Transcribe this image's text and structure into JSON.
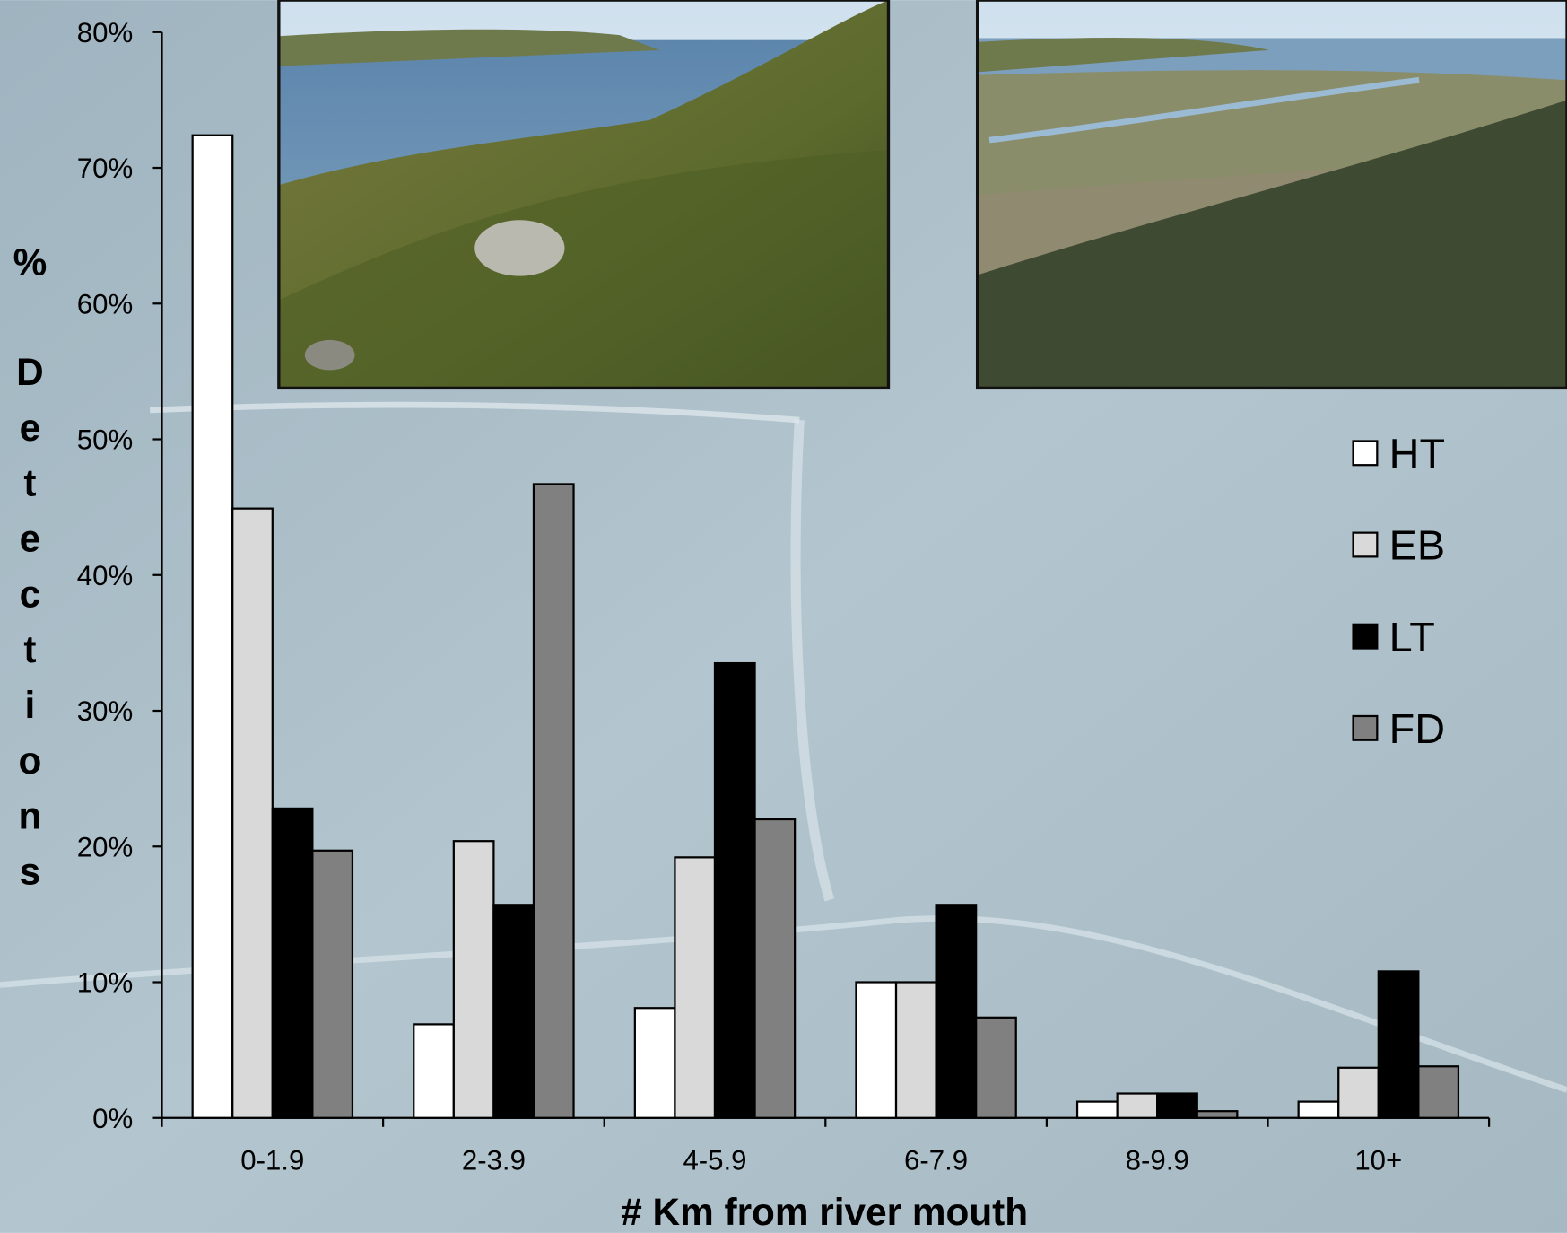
{
  "chart_data": {
    "type": "bar",
    "x_label": "# Km from river mouth",
    "y_label": "% Detections",
    "categories": [
      "0-1.9",
      "2-3.9",
      "4-5.9",
      "6-7.9",
      "8-9.9",
      "10+"
    ],
    "series": [
      {
        "name": "HT",
        "color": "#ffffff",
        "values": [
          72.4,
          6.9,
          8.1,
          10.0,
          1.2,
          1.2
        ]
      },
      {
        "name": "EB",
        "color": "#d9d9d9",
        "values": [
          44.9,
          20.4,
          19.2,
          10.0,
          1.8,
          3.7
        ]
      },
      {
        "name": "LT",
        "color": "#000000",
        "values": [
          22.8,
          15.7,
          33.5,
          15.7,
          1.8,
          10.8
        ]
      },
      {
        "name": "FD",
        "color": "#808080",
        "values": [
          19.7,
          46.7,
          22.0,
          7.4,
          0.5,
          3.8
        ]
      }
    ],
    "ylim": [
      0,
      80
    ],
    "yticks": [
      {
        "value": 0,
        "label": "0%"
      },
      {
        "value": 10,
        "label": "10%"
      },
      {
        "value": 20,
        "label": "20%"
      },
      {
        "value": 30,
        "label": "30%"
      },
      {
        "value": 40,
        "label": "40%"
      },
      {
        "value": 50,
        "label": "50%"
      },
      {
        "value": 60,
        "label": "60%"
      },
      {
        "value": 70,
        "label": "70%"
      },
      {
        "value": 80,
        "label": "80%"
      }
    ],
    "legend": "right"
  }
}
